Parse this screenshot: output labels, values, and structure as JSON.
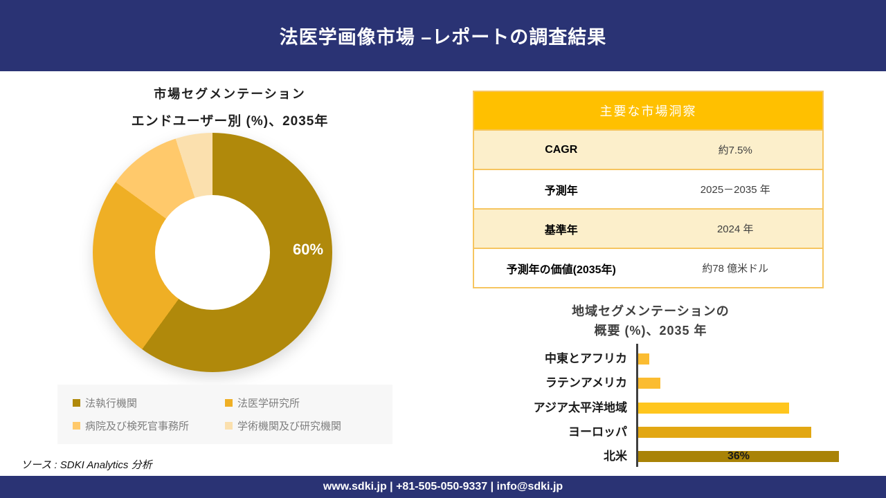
{
  "header": {
    "title": "法医学画像市場 –レポートの調査結果"
  },
  "insights_table": {
    "title": "主要な市場洞察",
    "rows": [
      {
        "label": "CAGR",
        "value": "約7.5%"
      },
      {
        "label": "予測年",
        "value": "2025－2035 年"
      },
      {
        "label": "基準年",
        "value": "2024 年"
      },
      {
        "label": "予測年の価値(2035年)",
        "value": "約78 億米ドル"
      }
    ]
  },
  "chart_data": [
    {
      "type": "pie",
      "variant": "donut",
      "title": "市場セグメンテーション",
      "subtitle": "エンドユーザー別 (%)、2035年",
      "labels": [
        "法執行機関",
        "法医学研究所",
        "病院及び検死官事務所",
        "学術機関及び研究機関"
      ],
      "values": [
        60,
        25,
        10,
        5
      ],
      "colors": [
        "#B0890B",
        "#EFAF25",
        "#FFC96B",
        "#FBE0AE"
      ],
      "data_label": "60%",
      "legend_position": "bottom"
    },
    {
      "type": "bar",
      "orientation": "horizontal",
      "title_lines": [
        "地域セグメンテーションの",
        "概要 (%)、2035 年"
      ],
      "categories": [
        "中東とアフリカ",
        "ラテンアメリカ",
        "アジア太平洋地域",
        "ヨーロッパ",
        "北米"
      ],
      "values": [
        2,
        4,
        27,
        31,
        36
      ],
      "colors": [
        "#FBBC31",
        "#FBBC31",
        "#FFC61E",
        "#E2A713",
        "#A98307"
      ],
      "data_label": "36%",
      "data_label_category": "北米",
      "xlim": [
        0,
        36
      ],
      "grid": false
    }
  ],
  "source_note": "ソース : SDKI Analytics 分析",
  "footer": {
    "text": "www.sdki.jp | +81-505-050-9337 | info@sdki.jp"
  },
  "colors": {
    "navy": "#2A3374",
    "table-header-gold": "#FFC000",
    "table-row-cream": "#FCEFCB",
    "table-border": "#F6C55F",
    "axis-gray": "#3F3F3F",
    "legend-bg": "#F7F7F7",
    "legend-text": "#7F7F7F"
  }
}
